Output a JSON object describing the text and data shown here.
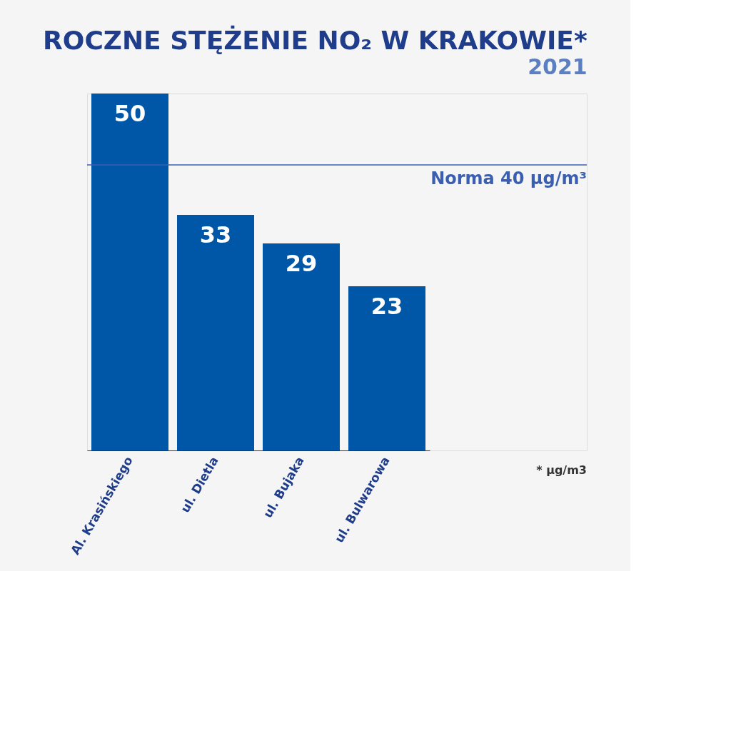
{
  "chart_data": {
    "type": "bar",
    "title": "ROCZNE STĘŻENIE NO₂ W KRAKOWIE*",
    "subtitle": "2021",
    "categories": [
      "Al. Krasińskiego",
      "ul. Dietla",
      "ul. Bujaka",
      "ul. Bulwarowa"
    ],
    "values": [
      50,
      33,
      29,
      23
    ],
    "color": "#0057a8",
    "data_labels": true,
    "ref_lines": [
      {
        "axis": "y",
        "value": 40,
        "label": "Norma 40 µg/m³",
        "color": "#3a5fb0"
      }
    ],
    "annotations": [
      "* µg/m3"
    ],
    "grid": false
  }
}
